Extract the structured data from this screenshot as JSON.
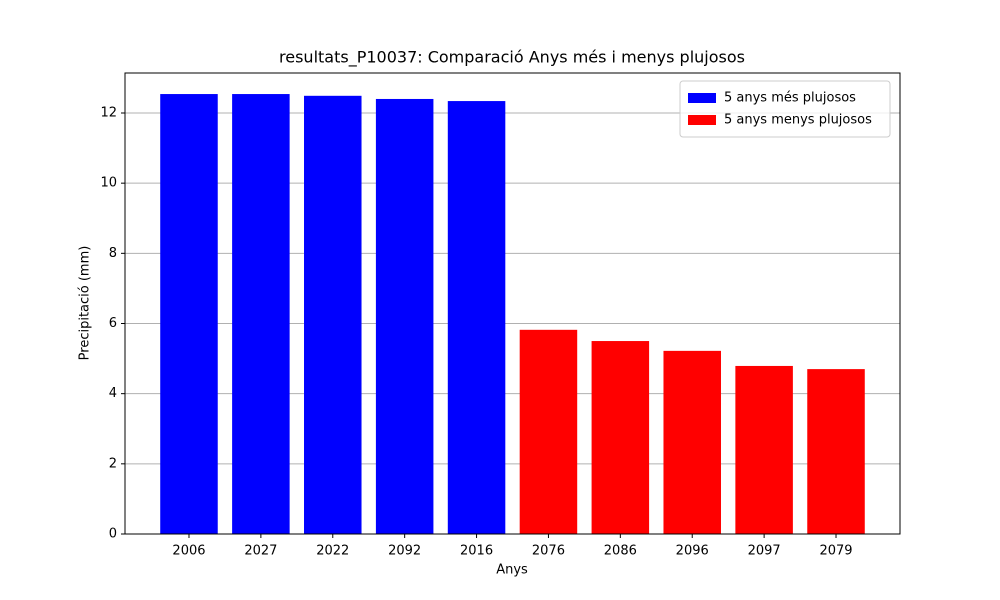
{
  "chart_data": {
    "type": "bar",
    "title": "resultats_P10037: Comparació Anys més i menys plujosos",
    "xlabel": "Anys",
    "ylabel": "Precipitació (mm)",
    "categories": [
      "2006",
      "2027",
      "2022",
      "2092",
      "2016",
      "2076",
      "2086",
      "2096",
      "2097",
      "2079"
    ],
    "series": [
      {
        "name": "5 anys més plujosos",
        "color": "#0000ff",
        "values": [
          12.54,
          12.54,
          12.49,
          12.4,
          12.34,
          null,
          null,
          null,
          null,
          null
        ]
      },
      {
        "name": "5 anys menys plujosos",
        "color": "#ff0000",
        "values": [
          null,
          null,
          null,
          null,
          null,
          5.82,
          5.5,
          5.22,
          4.79,
          4.7
        ]
      }
    ],
    "ylim": [
      0,
      13.14
    ],
    "yticks": [
      0,
      2,
      4,
      6,
      8,
      10,
      12
    ],
    "grid": true,
    "legend": "upper right"
  }
}
